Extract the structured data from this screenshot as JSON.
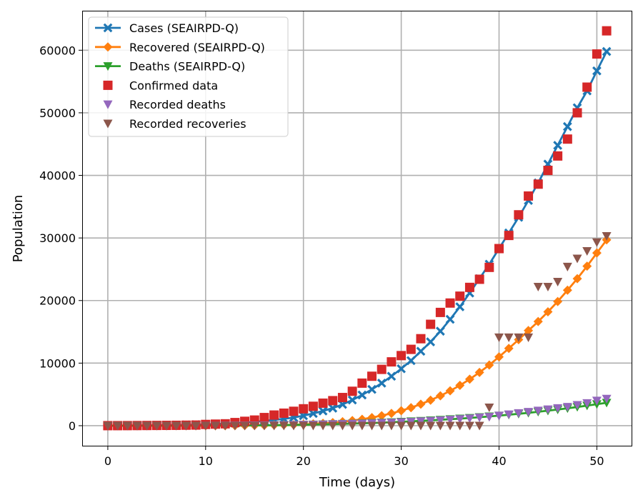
{
  "chart_data": {
    "type": "line",
    "title": "",
    "xlabel": "Time (days)",
    "ylabel": "Population",
    "xlim": [
      -2.55,
      53.55
    ],
    "ylim": [
      -3200,
      66200
    ],
    "xticks": [
      0,
      10,
      20,
      30,
      40,
      50
    ],
    "yticks": [
      0,
      10000,
      20000,
      30000,
      40000,
      50000,
      60000
    ],
    "grid": true,
    "legend_position": "top-left",
    "series": [
      {
        "name": "Cases (SEAIRPD-Q)",
        "kind": "line",
        "color": "#1f77b4",
        "marker": "x",
        "x": [
          0,
          1,
          2,
          3,
          4,
          5,
          6,
          7,
          8,
          9,
          10,
          11,
          12,
          13,
          14,
          15,
          16,
          17,
          18,
          19,
          20,
          21,
          22,
          23,
          24,
          25,
          26,
          27,
          28,
          29,
          30,
          31,
          32,
          33,
          34,
          35,
          36,
          37,
          38,
          39,
          40,
          41,
          42,
          43,
          44,
          45,
          46,
          47,
          48,
          49,
          50,
          51
        ],
        "values": [
          0,
          10,
          20,
          30,
          45,
          60,
          80,
          100,
          130,
          160,
          200,
          250,
          320,
          400,
          500,
          620,
          760,
          920,
          1100,
          1300,
          1600,
          1950,
          2350,
          2800,
          3400,
          4100,
          4900,
          5800,
          6800,
          7900,
          9100,
          10400,
          11900,
          13400,
          15100,
          17000,
          19000,
          21200,
          23500,
          25800,
          28300,
          30800,
          33300,
          36000,
          38800,
          41800,
          44800,
          47800,
          50800,
          53500,
          56700,
          59800
        ]
      },
      {
        "name": "Recovered (SEAIRPD-Q)",
        "kind": "line",
        "color": "#ff7f0e",
        "marker": "D",
        "x": [
          0,
          1,
          2,
          3,
          4,
          5,
          6,
          7,
          8,
          9,
          10,
          11,
          12,
          13,
          14,
          15,
          16,
          17,
          18,
          19,
          20,
          21,
          22,
          23,
          24,
          25,
          26,
          27,
          28,
          29,
          30,
          31,
          32,
          33,
          34,
          35,
          36,
          37,
          38,
          39,
          40,
          41,
          42,
          43,
          44,
          45,
          46,
          47,
          48,
          49,
          50,
          51
        ],
        "values": [
          0,
          0,
          0,
          0,
          0,
          0,
          0,
          0,
          0,
          0,
          0,
          0,
          0,
          10,
          20,
          40,
          60,
          90,
          120,
          160,
          220,
          290,
          380,
          490,
          640,
          820,
          1030,
          1300,
          1600,
          1960,
          2390,
          2880,
          3440,
          4080,
          4780,
          5570,
          6450,
          7430,
          8510,
          9700,
          11000,
          12350,
          13750,
          15200,
          16650,
          18200,
          19850,
          21650,
          23500,
          25500,
          27600,
          29700
        ]
      },
      {
        "name": "Deaths (SEAIRPD-Q)",
        "kind": "line",
        "color": "#2ca02c",
        "marker": "v",
        "x": [
          0,
          1,
          2,
          3,
          4,
          5,
          6,
          7,
          8,
          9,
          10,
          11,
          12,
          13,
          14,
          15,
          16,
          17,
          18,
          19,
          20,
          21,
          22,
          23,
          24,
          25,
          26,
          27,
          28,
          29,
          30,
          31,
          32,
          33,
          34,
          35,
          36,
          37,
          38,
          39,
          40,
          41,
          42,
          43,
          44,
          45,
          46,
          47,
          48,
          49,
          50,
          51
        ],
        "values": [
          0,
          0,
          0,
          0,
          0,
          0,
          0,
          0,
          0,
          0,
          10,
          15,
          20,
          30,
          40,
          50,
          60,
          80,
          100,
          120,
          150,
          180,
          210,
          250,
          290,
          330,
          380,
          430,
          490,
          550,
          620,
          690,
          770,
          850,
          940,
          1030,
          1130,
          1240,
          1360,
          1480,
          1610,
          1750,
          1900,
          2050,
          2220,
          2400,
          2580,
          2780,
          2990,
          3200,
          3430,
          3660
        ]
      },
      {
        "name": "Confirmed data",
        "kind": "scatter",
        "color": "#d62728",
        "marker": "s",
        "x": [
          0,
          1,
          2,
          3,
          4,
          5,
          6,
          7,
          8,
          9,
          10,
          11,
          12,
          13,
          14,
          15,
          16,
          17,
          18,
          19,
          20,
          21,
          22,
          23,
          24,
          25,
          26,
          27,
          28,
          29,
          30,
          31,
          32,
          33,
          34,
          35,
          36,
          37,
          38,
          39,
          40,
          41,
          42,
          43,
          44,
          45,
          46,
          47,
          48,
          49,
          50,
          51
        ],
        "values": [
          5,
          5,
          10,
          20,
          30,
          40,
          50,
          60,
          80,
          100,
          200,
          250,
          300,
          500,
          700,
          900,
          1300,
          1700,
          2000,
          2300,
          2700,
          3100,
          3600,
          4000,
          4500,
          5500,
          6800,
          7900,
          9000,
          10200,
          11200,
          12200,
          13900,
          16200,
          18100,
          19600,
          20700,
          22100,
          23400,
          25300,
          28300,
          30400,
          33700,
          36700,
          38600,
          40800,
          43100,
          45800,
          50000,
          54100,
          59400,
          63100
        ]
      },
      {
        "name": "Recorded deaths",
        "kind": "scatter",
        "color": "#9467bd",
        "marker": "v",
        "x": [
          0,
          1,
          2,
          3,
          4,
          5,
          6,
          7,
          8,
          9,
          10,
          11,
          12,
          13,
          14,
          15,
          16,
          17,
          18,
          19,
          20,
          21,
          22,
          23,
          24,
          25,
          26,
          27,
          28,
          29,
          30,
          31,
          32,
          33,
          34,
          35,
          36,
          37,
          38,
          39,
          40,
          41,
          42,
          43,
          44,
          45,
          46,
          47,
          48,
          49,
          50,
          51
        ],
        "values": [
          0,
          0,
          0,
          0,
          0,
          0,
          0,
          0,
          0,
          0,
          10,
          10,
          20,
          30,
          40,
          50,
          60,
          80,
          100,
          120,
          150,
          170,
          200,
          230,
          260,
          300,
          340,
          380,
          430,
          480,
          550,
          610,
          690,
          770,
          850,
          950,
          1050,
          1150,
          1300,
          1400,
          1600,
          1800,
          2000,
          2200,
          2400,
          2600,
          2800,
          3000,
          3300,
          3600,
          4000,
          4300
        ]
      },
      {
        "name": "Recorded recoveries",
        "kind": "scatter",
        "color": "#8c564b",
        "marker": "v",
        "x": [
          0,
          1,
          2,
          3,
          4,
          5,
          6,
          7,
          8,
          9,
          10,
          11,
          12,
          13,
          14,
          15,
          16,
          17,
          18,
          19,
          20,
          21,
          22,
          23,
          24,
          25,
          26,
          27,
          28,
          29,
          30,
          31,
          32,
          33,
          34,
          35,
          36,
          37,
          38,
          39,
          40,
          41,
          42,
          43,
          44,
          45,
          46,
          47,
          48,
          49,
          50,
          51
        ],
        "values": [
          0,
          0,
          0,
          0,
          0,
          0,
          0,
          0,
          0,
          0,
          0,
          0,
          0,
          0,
          0,
          0,
          0,
          0,
          0,
          0,
          0,
          0,
          0,
          0,
          0,
          0,
          0,
          0,
          0,
          0,
          0,
          0,
          0,
          0,
          0,
          0,
          0,
          0,
          0,
          2900,
          14100,
          14100,
          14100,
          14100,
          22200,
          22200,
          23000,
          25400,
          26700,
          27900,
          29300,
          30300
        ]
      }
    ]
  }
}
